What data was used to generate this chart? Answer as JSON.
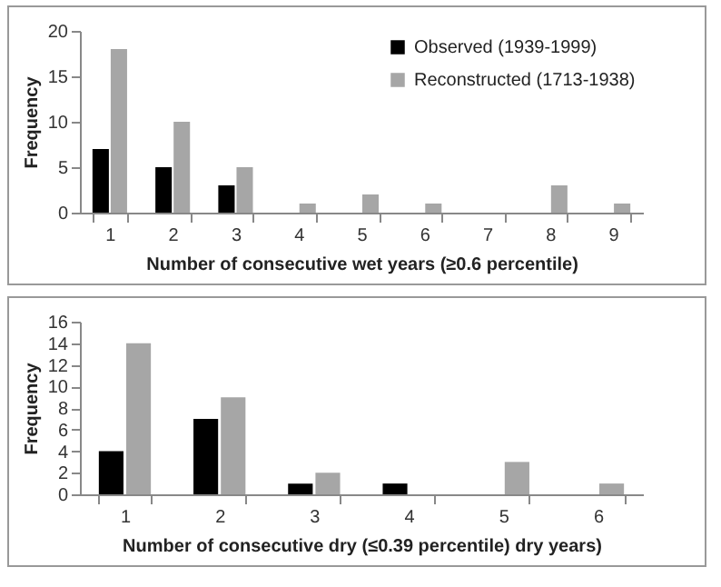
{
  "chart_data": [
    {
      "type": "bar",
      "categories": [
        "1",
        "2",
        "3",
        "4",
        "5",
        "6",
        "7",
        "8",
        "9"
      ],
      "xlabel": "Number of consecutive wet years (≥0.6 percentile)",
      "ylabel": "Frequency",
      "ylim": [
        0,
        20
      ],
      "yticks": [
        0,
        5,
        10,
        15,
        20
      ],
      "grid": false,
      "legend": "top right",
      "series": [
        {
          "name": "Observed (1939-1999)",
          "color": "#000000",
          "values": [
            7,
            5,
            3,
            null,
            null,
            null,
            null,
            null,
            null
          ]
        },
        {
          "name": "Reconstructed (1713-1938)",
          "color": "#a6a6a6",
          "values": [
            18,
            10,
            5,
            1,
            2,
            1,
            null,
            3,
            1
          ]
        }
      ]
    },
    {
      "type": "bar",
      "categories": [
        "1",
        "2",
        "3",
        "4",
        "5",
        "6"
      ],
      "xlabel": "Number of consecutive dry (≤0.39 percentile) dry years)",
      "ylabel": "Frequency",
      "ylim": [
        0,
        16
      ],
      "yticks": [
        0,
        2,
        4,
        6,
        8,
        10,
        12,
        14,
        16
      ],
      "grid": false,
      "series": [
        {
          "color": "#000000",
          "values": [
            4,
            7,
            1,
            1,
            null,
            null
          ]
        },
        {
          "color": "#a6a6a6",
          "values": [
            14,
            9,
            2,
            null,
            3,
            1
          ]
        }
      ]
    }
  ]
}
